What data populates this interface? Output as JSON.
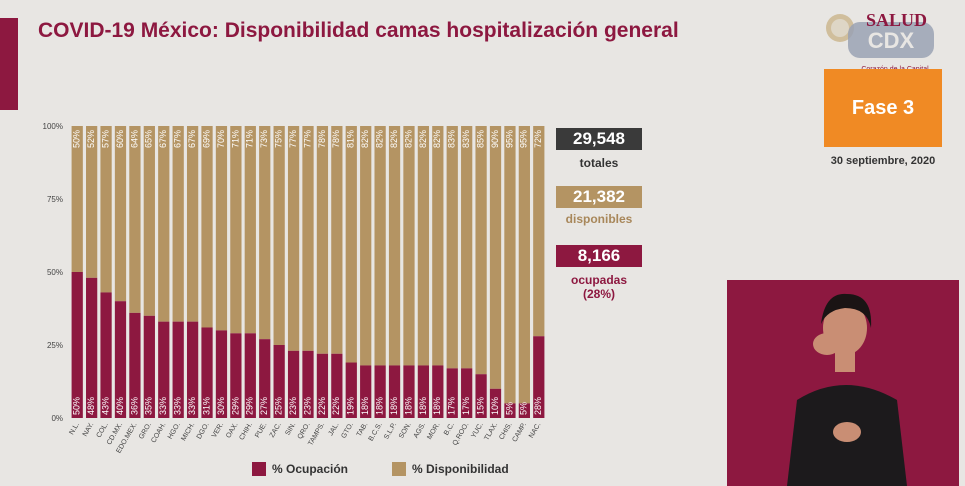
{
  "header": {
    "title": "COVID-19 México: Disponibilidad camas hospitalización general"
  },
  "stats": {
    "total": "29,548",
    "total_label": "totales",
    "available": "21,382",
    "available_label": "disponibles",
    "occupied": "8,166",
    "occupied_label": "ocupadas",
    "occupied_pct": "(28%)"
  },
  "branding": {
    "logo_text": "SALUD",
    "logo_subtitle": "Corazón de la Capital",
    "phase": "Fase 3",
    "date": "30 septiembre, 2020"
  },
  "colors": {
    "occupancy": "#8d1840",
    "availability": "#b49463",
    "total_box": "#3a3a3a",
    "phase_box": "#f08a24"
  },
  "icons": [
    "salud-logo-icon",
    "cdmx-logo-icon",
    "sign-language-interpreter"
  ],
  "chart_data": {
    "type": "bar",
    "stacked": true,
    "ytick_labels": [
      "0%",
      "25%",
      "50%",
      "75%",
      "100%"
    ],
    "ylim": [
      0,
      100
    ],
    "categories": [
      "N.L.",
      "NAY.",
      "COL.",
      "CD.MX.",
      "EDO.MEX.",
      "GRO.",
      "COAH.",
      "HGO.",
      "MICH.",
      "DGO.",
      "VER.",
      "OAX.",
      "CHIH.",
      "PUE.",
      "ZAC.",
      "SIN.",
      "QRO.",
      "TAMPS.",
      "JAL.",
      "GTO.",
      "TAB.",
      "B.C.S.",
      "S.L.P.",
      "SON.",
      "AGS.",
      "MOR.",
      "B.C.",
      "Q.ROO.",
      "YUC.",
      "TLAX.",
      "CHIS.",
      "CAMP.",
      "NAC."
    ],
    "series": [
      {
        "name": "% Ocupación",
        "values": [
          50,
          48,
          43,
          40,
          36,
          35,
          33,
          33,
          33,
          31,
          30,
          29,
          29,
          27,
          25,
          23,
          23,
          22,
          22,
          19,
          18,
          18,
          18,
          18,
          18,
          18,
          17,
          17,
          15,
          10,
          5,
          5,
          28
        ]
      },
      {
        "name": "% Disponibilidad",
        "values": [
          50,
          52,
          57,
          60,
          64,
          65,
          67,
          67,
          67,
          69,
          70,
          71,
          71,
          73,
          75,
          77,
          77,
          78,
          78,
          81,
          82,
          82,
          82,
          82,
          82,
          82,
          83,
          83,
          85,
          90,
          95,
          95,
          72
        ]
      }
    ]
  }
}
